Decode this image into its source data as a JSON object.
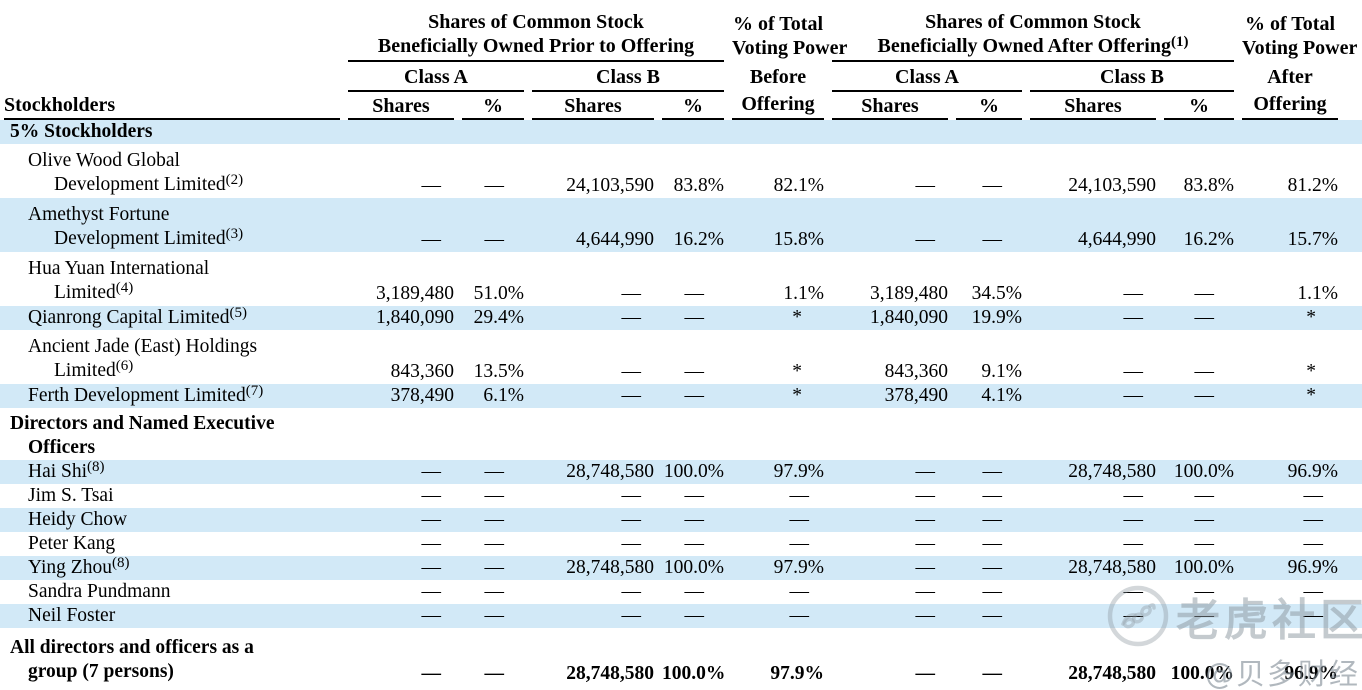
{
  "table": {
    "header": {
      "stockholders_label": "Stockholders",
      "prior_group": {
        "lines": [
          "Shares of Common Stock",
          "Beneficially Owned Prior to Offering"
        ],
        "class_a": "Class A",
        "class_b": "Class B"
      },
      "after_group": {
        "lines": [
          "Shares of Common Stock",
          "Beneficially Owned After Offering"
        ],
        "footnote": "(1)",
        "class_a": "Class A",
        "class_b": "Class B"
      },
      "voting_before": {
        "lines": [
          "% of Total",
          "Voting Power",
          "Before",
          "Offering"
        ]
      },
      "voting_after": {
        "lines": [
          "% of Total",
          "Voting Power",
          "After",
          "Offering"
        ]
      },
      "shares_label": "Shares",
      "percent_label": "%"
    },
    "rows": [
      {
        "type": "section",
        "shaded": true,
        "lines": [
          "5% Stockholders"
        ]
      },
      {
        "type": "entity",
        "shaded": false,
        "lines": [
          "Olive Wood Global",
          "Development Limited"
        ],
        "footnote": "(2)",
        "values": [
          "—",
          "—",
          "24,103,590",
          "83.8%",
          "82.1%",
          "—",
          "—",
          "24,103,590",
          "83.8%",
          "81.2%"
        ]
      },
      {
        "type": "entity",
        "shaded": true,
        "lines": [
          "Amethyst Fortune",
          "Development Limited"
        ],
        "footnote": "(3)",
        "values": [
          "—",
          "—",
          "4,644,990",
          "16.2%",
          "15.8%",
          "—",
          "—",
          "4,644,990",
          "16.2%",
          "15.7%"
        ]
      },
      {
        "type": "entity",
        "shaded": false,
        "lines": [
          "Hua Yuan International",
          "Limited"
        ],
        "footnote": "(4)",
        "values": [
          "3,189,480",
          "51.0%",
          "—",
          "—",
          "1.1%",
          "3,189,480",
          "34.5%",
          "—",
          "—",
          "1.1%"
        ]
      },
      {
        "type": "entity",
        "shaded": true,
        "lines": [
          "Qianrong Capital Limited"
        ],
        "footnote": "(5)",
        "values": [
          "1,840,090",
          "29.4%",
          "—",
          "—",
          "*",
          "1,840,090",
          "19.9%",
          "—",
          "—",
          "*"
        ]
      },
      {
        "type": "entity",
        "shaded": false,
        "lines": [
          "Ancient Jade (East) Holdings",
          "Limited"
        ],
        "footnote": "(6)",
        "values": [
          "843,360",
          "13.5%",
          "—",
          "—",
          "*",
          "843,360",
          "9.1%",
          "—",
          "—",
          "*"
        ]
      },
      {
        "type": "entity",
        "shaded": true,
        "lines": [
          "Ferth Development Limited"
        ],
        "footnote": "(7)",
        "values": [
          "378,490",
          "6.1%",
          "—",
          "—",
          "*",
          "378,490",
          "4.1%",
          "—",
          "—",
          "*"
        ]
      },
      {
        "type": "section",
        "shaded": false,
        "lines": [
          "Directors and Named Executive",
          "Officers"
        ]
      },
      {
        "type": "entity",
        "shaded": true,
        "lines": [
          "Hai Shi"
        ],
        "footnote": "(8)",
        "values": [
          "—",
          "—",
          "28,748,580",
          "100.0%",
          "97.9%",
          "—",
          "—",
          "28,748,580",
          "100.0%",
          "96.9%"
        ]
      },
      {
        "type": "entity",
        "shaded": false,
        "lines": [
          "Jim S. Tsai"
        ],
        "values": [
          "—",
          "—",
          "—",
          "—",
          "—",
          "—",
          "—",
          "—",
          "—",
          "—"
        ]
      },
      {
        "type": "entity",
        "shaded": true,
        "lines": [
          "Heidy Chow"
        ],
        "values": [
          "—",
          "—",
          "—",
          "—",
          "—",
          "—",
          "—",
          "—",
          "—",
          "—"
        ]
      },
      {
        "type": "entity",
        "shaded": false,
        "lines": [
          "Peter Kang"
        ],
        "values": [
          "—",
          "—",
          "—",
          "—",
          "—",
          "—",
          "—",
          "—",
          "—",
          "—"
        ]
      },
      {
        "type": "entity",
        "shaded": true,
        "lines": [
          "Ying Zhou"
        ],
        "footnote": "(8)",
        "values": [
          "—",
          "—",
          "28,748,580",
          "100.0%",
          "97.9%",
          "—",
          "—",
          "28,748,580",
          "100.0%",
          "96.9%"
        ]
      },
      {
        "type": "entity",
        "shaded": false,
        "lines": [
          "Sandra Pundmann"
        ],
        "values": [
          "—",
          "—",
          "—",
          "—",
          "—",
          "—",
          "—",
          "—",
          "—",
          "—"
        ]
      },
      {
        "type": "entity",
        "shaded": true,
        "lines": [
          "Neil Foster"
        ],
        "values": [
          "—",
          "—",
          "—",
          "—",
          "—",
          "—",
          "—",
          "—",
          "—",
          "—"
        ]
      },
      {
        "type": "total",
        "shaded": false,
        "lines": [
          "All directors and officers as a",
          "group (7 persons)"
        ],
        "values": [
          "—",
          "—",
          "28,748,580",
          "100.0%",
          "97.9%",
          "—",
          "—",
          "28,748,580",
          "100.0%",
          "96.9%"
        ]
      }
    ]
  },
  "colors": {
    "row_highlight": "#d2e9f7",
    "text": "#000000",
    "rule": "#000000",
    "watermark_gray": "#8a959e"
  },
  "watermark": {
    "brand": "老虎社区",
    "handle": "@贝多财经",
    "logo": "tiger-circle-logo"
  }
}
